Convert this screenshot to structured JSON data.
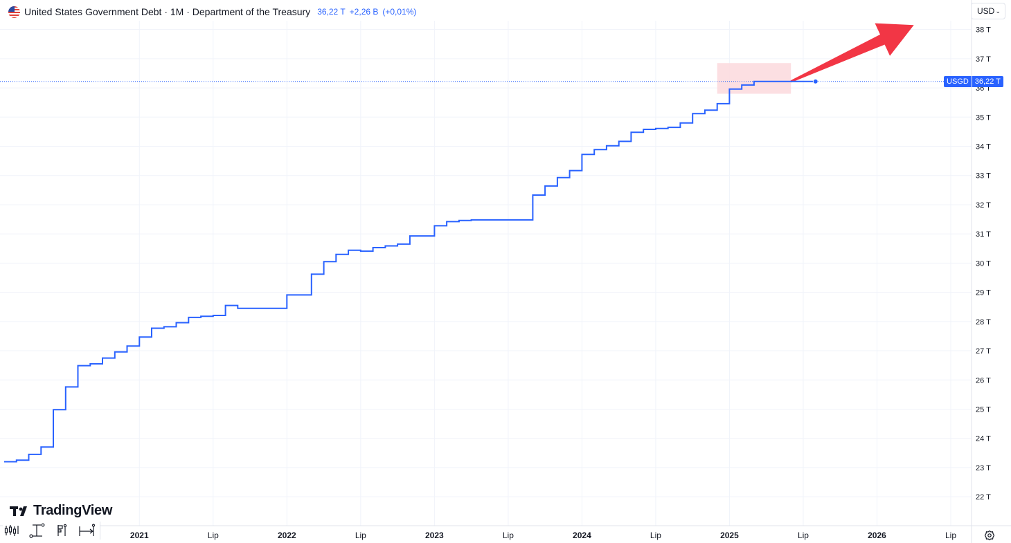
{
  "header": {
    "title": "United States Government Debt · 1M · Department of the Treasury",
    "last_value": "36,22 T",
    "change": "+2,26 B",
    "change_pct": "(+0,01%)"
  },
  "currency": {
    "label": "USD"
  },
  "price_tag": {
    "symbol": "USGD",
    "value": "36,22 T"
  },
  "logo": {
    "text": "TradingView"
  },
  "colors": {
    "line": "#2962ff",
    "arrow": "#f23645",
    "highlight": "#fcdcdf",
    "grid": "#f0f3fa"
  },
  "icons": {
    "toolbar": [
      "candles-icon",
      "crosshair-icon",
      "bar-tool-icon",
      "date-range-icon"
    ],
    "settings": "gear-icon"
  },
  "chart_data": {
    "type": "line",
    "style": "step",
    "title": "United States Government Debt",
    "unit": "T",
    "y_axis": {
      "ticks": [
        22,
        23,
        24,
        25,
        26,
        27,
        28,
        29,
        30,
        31,
        32,
        33,
        34,
        35,
        36,
        37,
        38
      ],
      "tick_suffix": " T",
      "position": "right"
    },
    "x_axis": {
      "ticks": [
        {
          "date": "2021-01",
          "label": "2021"
        },
        {
          "date": "2021-07",
          "label": "Lip"
        },
        {
          "date": "2022-01",
          "label": "2022"
        },
        {
          "date": "2022-07",
          "label": "Lip"
        },
        {
          "date": "2023-01",
          "label": "2023"
        },
        {
          "date": "2023-07",
          "label": "Lip"
        },
        {
          "date": "2024-01",
          "label": "2024"
        },
        {
          "date": "2024-07",
          "label": "Lip"
        },
        {
          "date": "2025-01",
          "label": "2025"
        },
        {
          "date": "2025-07",
          "label": "Lip"
        },
        {
          "date": "2026-01",
          "label": "2026"
        },
        {
          "date": "2026-07",
          "label": "Lip"
        }
      ]
    },
    "series": [
      {
        "x": [
          "2020-02",
          "2020-03",
          "2020-04",
          "2020-05",
          "2020-06",
          "2020-07",
          "2020-08",
          "2020-09",
          "2020-10",
          "2020-11",
          "2020-12",
          "2021-01",
          "2021-02",
          "2021-03",
          "2021-04",
          "2021-05",
          "2021-06",
          "2021-07",
          "2021-08",
          "2021-09",
          "2021-10",
          "2021-11",
          "2021-12",
          "2022-01",
          "2022-02",
          "2022-03",
          "2022-04",
          "2022-05",
          "2022-06",
          "2022-07",
          "2022-08",
          "2022-09",
          "2022-10",
          "2022-11",
          "2022-12",
          "2023-01",
          "2023-02",
          "2023-03",
          "2023-04",
          "2023-05",
          "2023-06",
          "2023-07",
          "2023-08",
          "2023-09",
          "2023-10",
          "2023-11",
          "2023-12",
          "2024-01",
          "2024-02",
          "2024-03",
          "2024-04",
          "2024-05",
          "2024-06",
          "2024-07",
          "2024-08",
          "2024-09",
          "2024-10",
          "2024-11",
          "2024-12",
          "2025-01",
          "2025-02",
          "2025-03",
          "2025-04",
          "2025-05",
          "2025-06",
          "2025-07",
          "2025-08"
        ],
        "values": [
          23.2,
          23.25,
          23.45,
          23.7,
          24.98,
          25.76,
          26.49,
          26.55,
          26.75,
          26.96,
          27.16,
          27.47,
          27.77,
          27.82,
          27.96,
          28.14,
          28.18,
          28.21,
          28.55,
          28.45,
          28.45,
          28.45,
          28.45,
          28.91,
          28.91,
          29.62,
          30.05,
          30.3,
          30.44,
          30.41,
          30.53,
          30.59,
          30.65,
          30.93,
          30.93,
          31.28,
          31.42,
          31.46,
          31.48,
          31.48,
          31.48,
          31.48,
          31.48,
          32.33,
          32.64,
          32.93,
          33.17,
          33.72,
          33.89,
          34.02,
          34.17,
          34.48,
          34.58,
          34.61,
          34.65,
          34.8,
          35.12,
          35.24,
          35.46,
          35.96,
          36.1,
          36.22,
          36.22,
          36.22,
          36.22,
          36.22,
          36.22
        ]
      }
    ],
    "last_value": 36.22,
    "ylim": [
      21.6,
      38.3
    ],
    "grid": true,
    "annotations": [
      {
        "type": "rectangle",
        "x_start": "2024-12",
        "x_end": "2025-06",
        "y_start": 35.8,
        "y_end": 36.85
      },
      {
        "type": "arrow",
        "x_start": "2025-06",
        "y_start": 36.22,
        "x_end": "2026-04",
        "y_end": 38.15
      }
    ]
  }
}
